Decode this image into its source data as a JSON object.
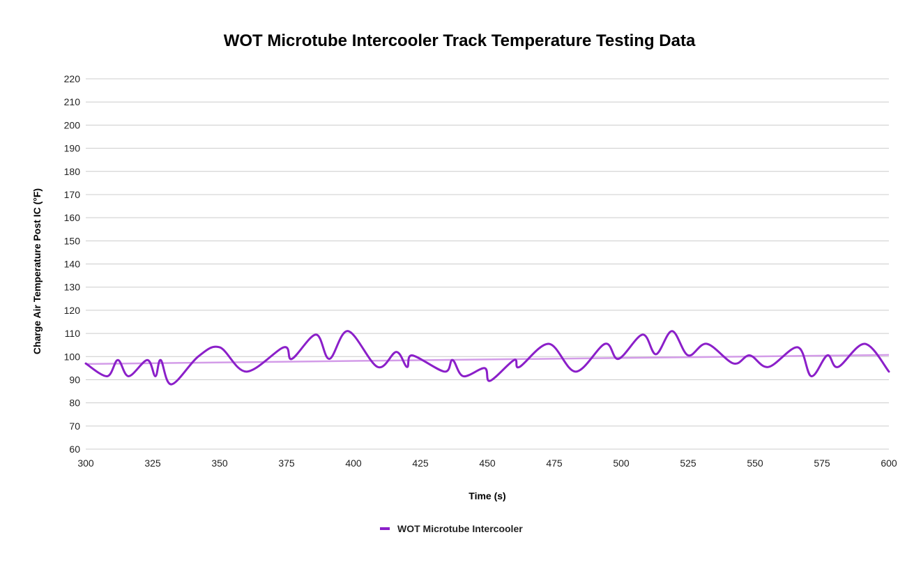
{
  "chart_data": {
    "type": "line",
    "title": "WOT Microtube Intercooler Track Temperature Testing Data",
    "xlabel": "Time (s)",
    "ylabel": "Charge Air Temperature Post IC (°F)",
    "xlim": [
      300,
      600
    ],
    "ylim": [
      60,
      220
    ],
    "x_ticks": [
      300,
      325,
      350,
      375,
      400,
      425,
      450,
      475,
      500,
      525,
      550,
      575,
      600
    ],
    "y_ticks": [
      60,
      70,
      80,
      90,
      100,
      110,
      120,
      130,
      140,
      150,
      160,
      170,
      180,
      190,
      200,
      210,
      220
    ],
    "grid": true,
    "legend_position": "bottom",
    "series": [
      {
        "name": "WOT Microtube Intercooler",
        "color": "#8b1fc9",
        "points": [
          [
            300,
            97
          ],
          [
            308,
            91.5
          ],
          [
            312,
            98.5
          ],
          [
            316,
            91.5
          ],
          [
            323,
            98.5
          ],
          [
            326,
            91.5
          ],
          [
            328,
            98.5
          ],
          [
            332,
            88
          ],
          [
            342,
            100
          ],
          [
            350,
            104
          ],
          [
            360,
            93.5
          ],
          [
            374,
            104
          ],
          [
            377,
            99
          ],
          [
            386,
            109.5
          ],
          [
            391,
            99
          ],
          [
            398,
            111
          ],
          [
            409,
            95.5
          ],
          [
            416,
            102
          ],
          [
            420,
            95.5
          ],
          [
            422,
            100.5
          ],
          [
            434,
            93.5
          ],
          [
            437,
            98.5
          ],
          [
            441,
            91.5
          ],
          [
            449,
            95
          ],
          [
            451,
            89.5
          ],
          [
            460,
            98.5
          ],
          [
            462,
            95.5
          ],
          [
            473,
            105.5
          ],
          [
            483,
            93.5
          ],
          [
            494,
            105.5
          ],
          [
            499,
            99
          ],
          [
            508,
            109.5
          ],
          [
            513,
            101
          ],
          [
            519,
            111
          ],
          [
            525,
            100.5
          ],
          [
            532,
            105.5
          ],
          [
            542,
            97
          ],
          [
            548,
            100.5
          ],
          [
            555,
            95.5
          ],
          [
            566,
            104
          ],
          [
            571,
            91.5
          ],
          [
            577,
            100.5
          ],
          [
            581,
            95.5
          ],
          [
            591,
            105.5
          ],
          [
            600,
            93.5
          ]
        ]
      }
    ],
    "trendline": {
      "color": "#d39ce8",
      "points": [
        [
          300,
          96.8
        ],
        [
          600,
          100.7
        ]
      ]
    }
  }
}
